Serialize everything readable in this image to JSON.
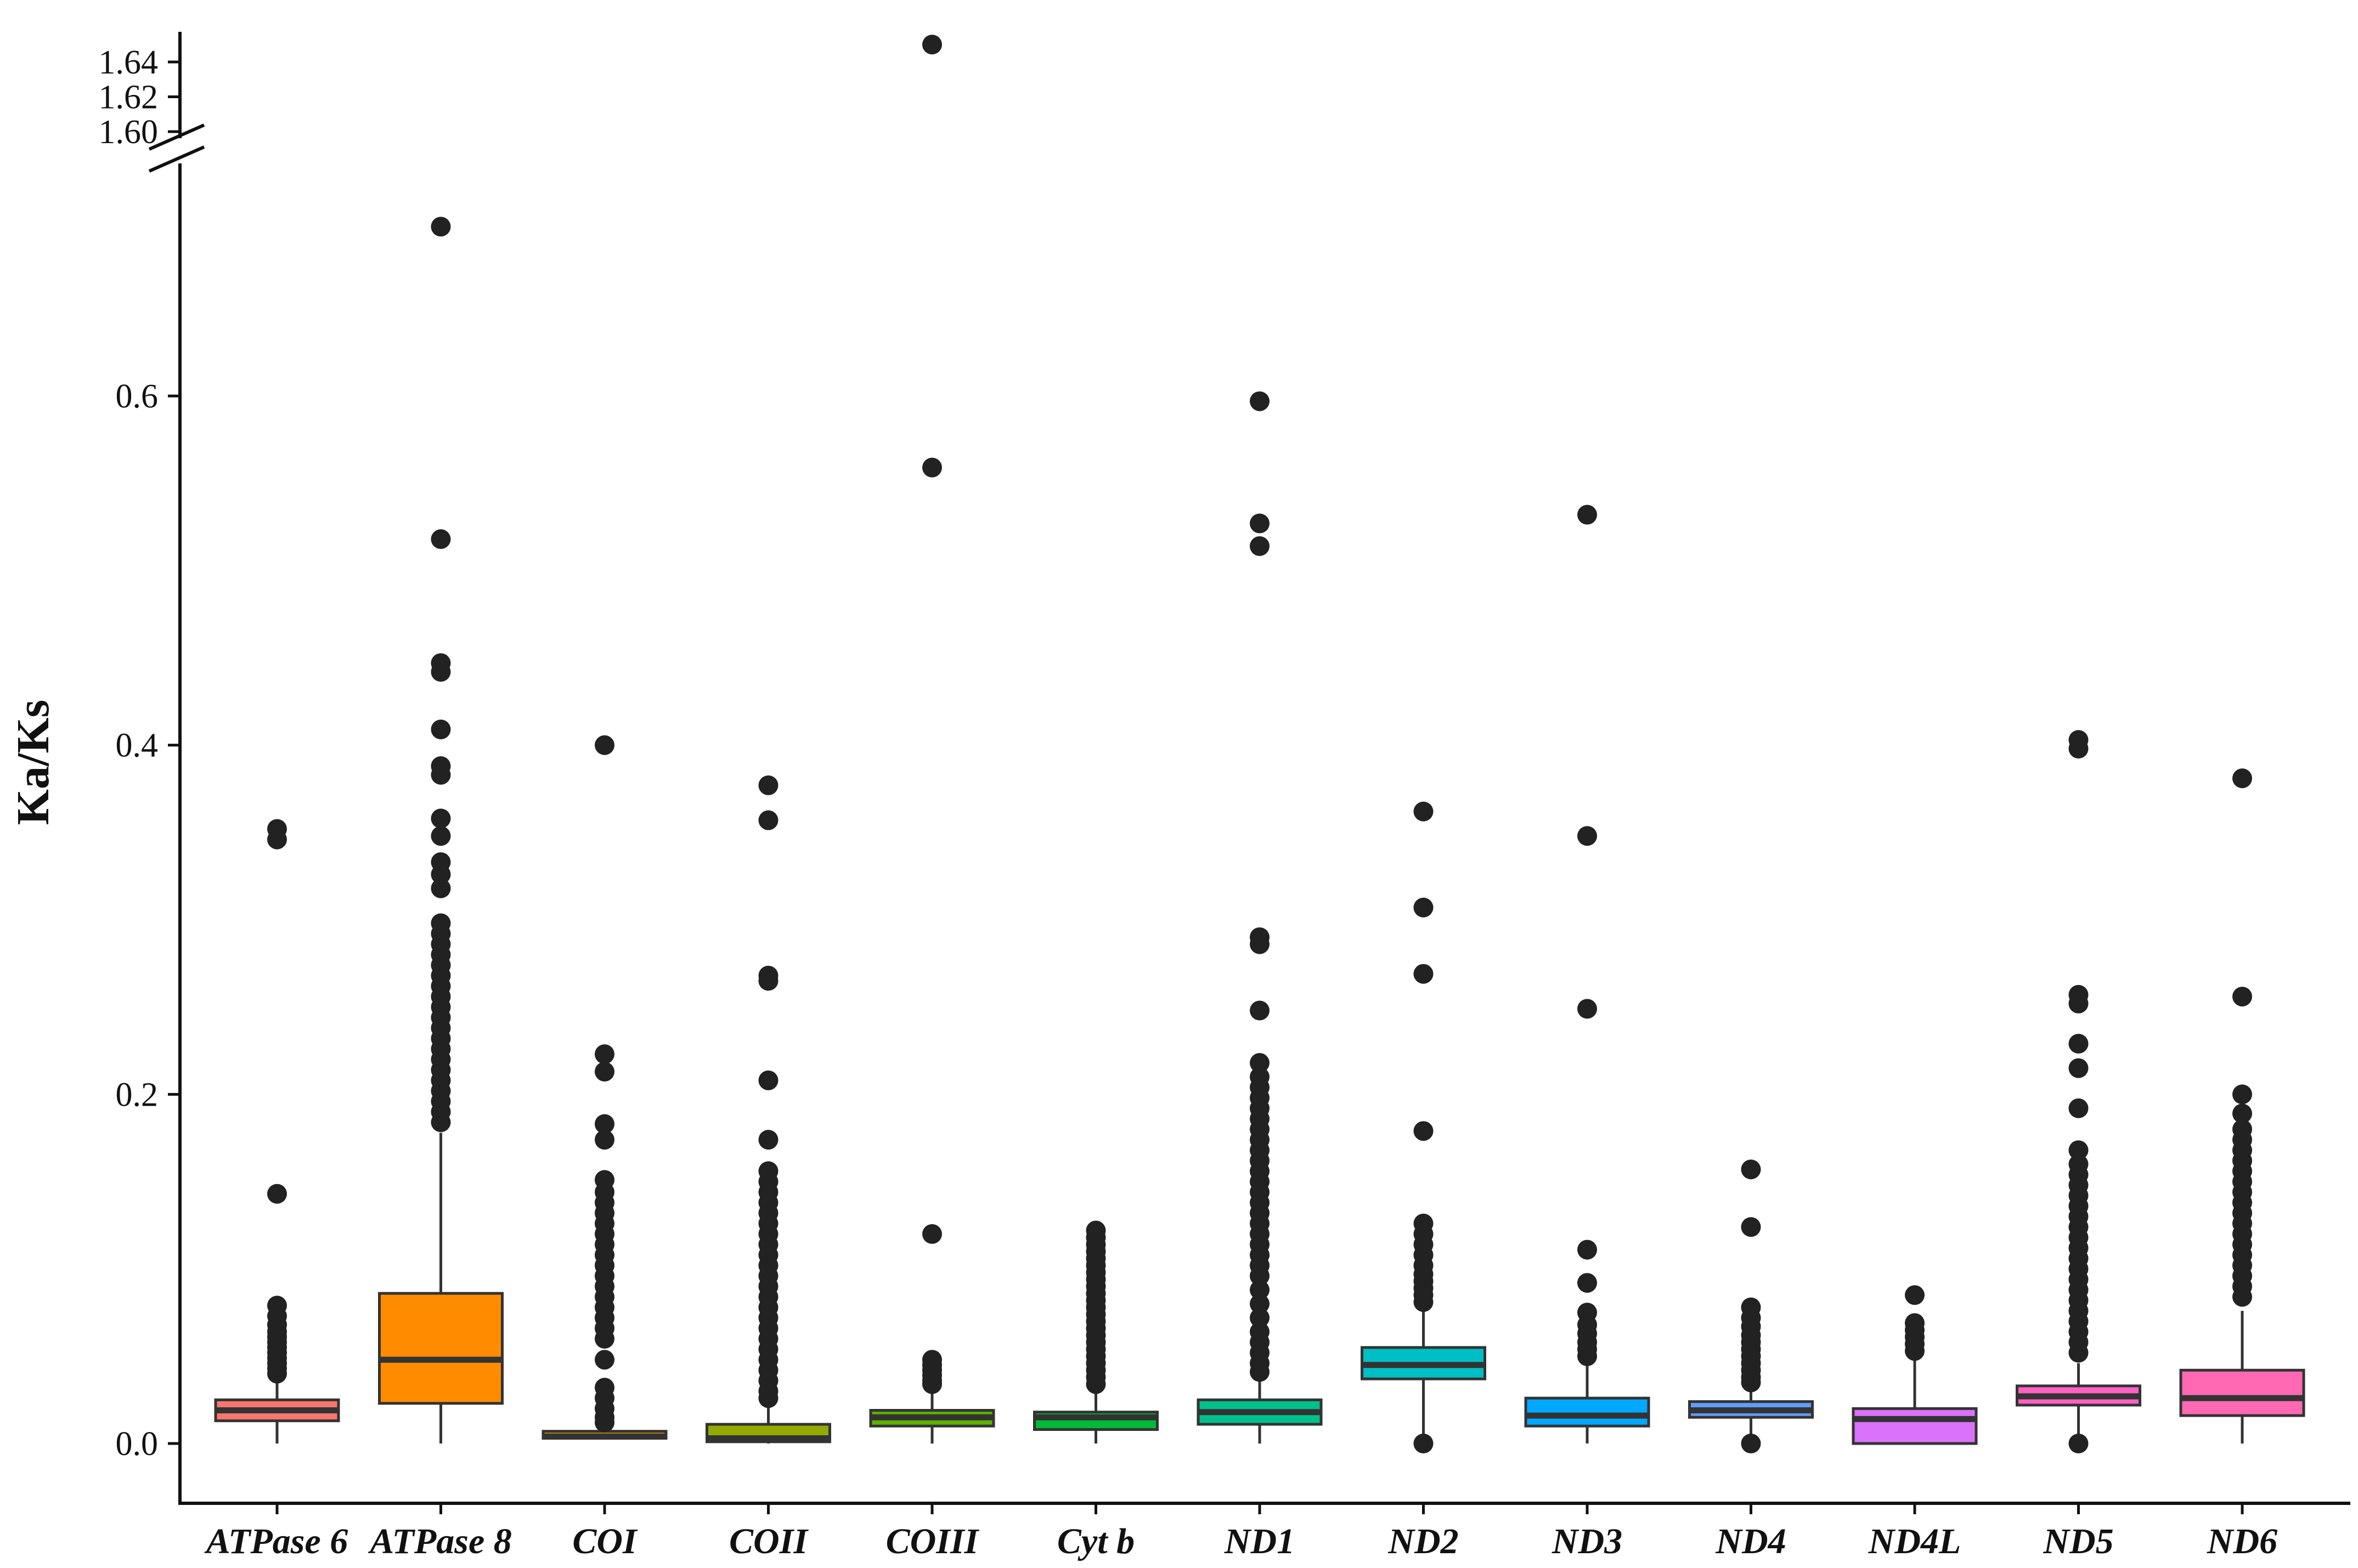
{
  "chart_data": {
    "type": "boxplot",
    "title": "",
    "xlabel": "",
    "ylabel": "Ka/Ks",
    "ylim_lower": [
      -0.03,
      0.72
    ],
    "ylim_upper": [
      1.6,
      1.655
    ],
    "axis_break": true,
    "yticks_lower": [
      "0.0",
      "0.2",
      "0.4",
      "0.6"
    ],
    "yticks_upper": [
      "1.60",
      "1.62",
      "1.64"
    ],
    "categories": [
      "ATPase 6",
      "ATPase 8",
      "COI",
      "COII",
      "COIII",
      "Cyt b",
      "ND1",
      "ND2",
      "ND3",
      "ND4",
      "ND4L",
      "ND5",
      "ND6"
    ],
    "series": [
      {
        "name": "ATPase 6",
        "color": "#F8766D",
        "q1": 0.013,
        "median": 0.019,
        "q3": 0.025,
        "whisker_low": 0.0,
        "whisker_high": 0.037,
        "outliers": [
          0.352,
          0.346,
          0.143,
          0.079,
          0.073,
          0.068,
          0.064,
          0.061,
          0.058,
          0.055,
          0.052,
          0.049,
          0.046,
          0.043,
          0.04
        ]
      },
      {
        "name": "ATPase 8",
        "color": "#FF8C00",
        "q1": 0.023,
        "median": 0.048,
        "q3": 0.086,
        "whisker_low": 0.0,
        "whisker_high": 0.178,
        "outliers": [
          0.697,
          0.518,
          0.447,
          0.442,
          0.409,
          0.388,
          0.383,
          0.358,
          0.348,
          0.333,
          0.326,
          0.318,
          0.298,
          0.292,
          0.286,
          0.28,
          0.274,
          0.268,
          0.262,
          0.256,
          0.25,
          0.244,
          0.238,
          0.232,
          0.226,
          0.22,
          0.214,
          0.208,
          0.202,
          0.196,
          0.19,
          0.184
        ]
      },
      {
        "name": "COI",
        "color": "#D39200",
        "q1": 0.003,
        "median": 0.004,
        "q3": 0.007,
        "whisker_low": 0.003,
        "whisker_high": 0.01,
        "outliers": [
          0.4,
          0.223,
          0.213,
          0.183,
          0.174,
          0.151,
          0.144,
          0.138,
          0.132,
          0.126,
          0.12,
          0.114,
          0.108,
          0.102,
          0.096,
          0.09,
          0.084,
          0.078,
          0.072,
          0.066,
          0.06,
          0.048,
          0.032,
          0.026,
          0.02,
          0.015,
          0.012
        ]
      },
      {
        "name": "COII",
        "color": "#93AA00",
        "q1": 0.001,
        "median": 0.003,
        "q3": 0.011,
        "whisker_low": 0.0,
        "whisker_high": 0.022,
        "outliers": [
          0.377,
          0.357,
          0.268,
          0.265,
          0.208,
          0.174,
          0.156,
          0.15,
          0.144,
          0.138,
          0.132,
          0.126,
          0.12,
          0.114,
          0.108,
          0.102,
          0.096,
          0.09,
          0.084,
          0.078,
          0.072,
          0.066,
          0.06,
          0.054,
          0.048,
          0.042,
          0.036,
          0.03,
          0.026
        ]
      },
      {
        "name": "COIII",
        "color": "#5BB300",
        "q1": 0.01,
        "median": 0.015,
        "q3": 0.019,
        "whisker_low": 0.0,
        "whisker_high": 0.031,
        "outliers": [
          1.65,
          0.559,
          0.12,
          0.048,
          0.045,
          0.042,
          0.039,
          0.036,
          0.034
        ]
      },
      {
        "name": "Cyt b",
        "color": "#00BA38",
        "q1": 0.008,
        "median": 0.015,
        "q3": 0.018,
        "whisker_low": 0.0,
        "whisker_high": 0.029,
        "outliers": [
          0.122,
          0.118,
          0.114,
          0.11,
          0.106,
          0.102,
          0.098,
          0.094,
          0.09,
          0.086,
          0.082,
          0.078,
          0.074,
          0.07,
          0.066,
          0.062,
          0.058,
          0.054,
          0.05,
          0.046,
          0.042,
          0.038,
          0.034
        ]
      },
      {
        "name": "ND1",
        "color": "#00C08B",
        "q1": 0.011,
        "median": 0.018,
        "q3": 0.025,
        "whisker_low": 0.0,
        "whisker_high": 0.038,
        "outliers": [
          0.597,
          0.527,
          0.514,
          0.29,
          0.286,
          0.248,
          0.218,
          0.21,
          0.204,
          0.198,
          0.192,
          0.186,
          0.18,
          0.174,
          0.168,
          0.162,
          0.156,
          0.15,
          0.144,
          0.138,
          0.132,
          0.126,
          0.12,
          0.114,
          0.108,
          0.102,
          0.096,
          0.088,
          0.08,
          0.072,
          0.064,
          0.058,
          0.052,
          0.046,
          0.041
        ]
      },
      {
        "name": "ND2",
        "color": "#00BFC4",
        "q1": 0.037,
        "median": 0.045,
        "q3": 0.055,
        "whisker_low": 0.0,
        "whisker_high": 0.078,
        "outliers": [
          0.362,
          0.307,
          0.269,
          0.179,
          0.126,
          0.12,
          0.114,
          0.108,
          0.102,
          0.097,
          0.093,
          0.089,
          0.085,
          0.081,
          0.0
        ]
      },
      {
        "name": "ND3",
        "color": "#00A9FF",
        "q1": 0.01,
        "median": 0.016,
        "q3": 0.026,
        "whisker_low": 0.0,
        "whisker_high": 0.047,
        "outliers": [
          0.532,
          0.348,
          0.249,
          0.111,
          0.092,
          0.075,
          0.068,
          0.063,
          0.058,
          0.054,
          0.05
        ]
      },
      {
        "name": "ND4",
        "color": "#619CFF",
        "q1": 0.015,
        "median": 0.019,
        "q3": 0.024,
        "whisker_low": 0.0,
        "whisker_high": 0.032,
        "outliers": [
          0.157,
          0.124,
          0.078,
          0.072,
          0.067,
          0.062,
          0.058,
          0.054,
          0.05,
          0.046,
          0.042,
          0.038,
          0.035,
          0.0
        ]
      },
      {
        "name": "ND4L",
        "color": "#DB72FB",
        "q1": 0.0,
        "median": 0.014,
        "q3": 0.02,
        "whisker_low": 0.0,
        "whisker_high": 0.048,
        "outliers": [
          0.085,
          0.069,
          0.065,
          0.061,
          0.057,
          0.053
        ]
      },
      {
        "name": "ND5",
        "color": "#FF61C3",
        "q1": 0.022,
        "median": 0.027,
        "q3": 0.033,
        "whisker_low": 0.0,
        "whisker_high": 0.046,
        "outliers": [
          0.403,
          0.398,
          0.257,
          0.252,
          0.229,
          0.215,
          0.192,
          0.168,
          0.16,
          0.154,
          0.148,
          0.142,
          0.136,
          0.13,
          0.124,
          0.118,
          0.112,
          0.106,
          0.1,
          0.094,
          0.088,
          0.082,
          0.076,
          0.07,
          0.064,
          0.058,
          0.052,
          0.0
        ]
      },
      {
        "name": "ND6",
        "color": "#FF69B4",
        "q1": 0.016,
        "median": 0.026,
        "q3": 0.042,
        "whisker_low": 0.0,
        "whisker_high": 0.076,
        "outliers": [
          0.381,
          0.256,
          0.2,
          0.189,
          0.18,
          0.174,
          0.168,
          0.162,
          0.156,
          0.15,
          0.144,
          0.138,
          0.132,
          0.126,
          0.12,
          0.114,
          0.108,
          0.102,
          0.096,
          0.09,
          0.084
        ]
      }
    ]
  }
}
